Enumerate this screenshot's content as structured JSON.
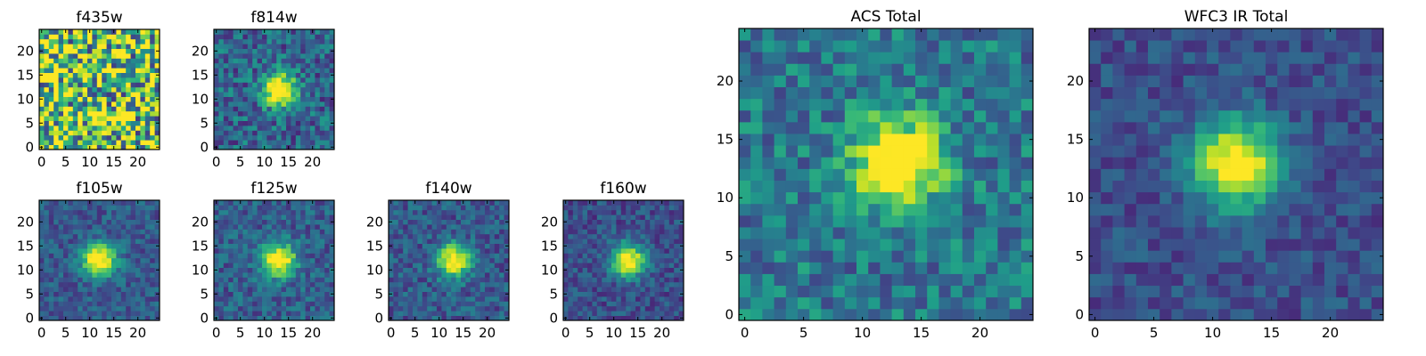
{
  "figure": {
    "colormap": "viridis"
  },
  "chart_data": [
    {
      "type": "heatmap",
      "title": "f435w",
      "size": 25,
      "xticks": [
        0,
        5,
        10,
        15,
        20
      ],
      "yticks": [
        0,
        5,
        10,
        15,
        20
      ],
      "xlim": [
        0,
        24
      ],
      "ylim": [
        0,
        24
      ],
      "source_center": [
        12,
        12
      ],
      "source_present": false,
      "noise_level": 0.55,
      "baseline": 0.72
    },
    {
      "type": "heatmap",
      "title": "f814w",
      "size": 25,
      "xticks": [
        0,
        5,
        10,
        15,
        20
      ],
      "yticks": [
        0,
        5,
        10,
        15,
        20
      ],
      "xlim": [
        0,
        24
      ],
      "ylim": [
        0,
        24
      ],
      "source_center": [
        13,
        12
      ],
      "source_present": true,
      "noise_level": 0.22,
      "baseline": 0.32
    },
    {
      "type": "heatmap",
      "title": "f105w",
      "size": 25,
      "xticks": [
        0,
        5,
        10,
        15,
        20
      ],
      "yticks": [
        0,
        5,
        10,
        15,
        20
      ],
      "xlim": [
        0,
        24
      ],
      "ylim": [
        0,
        24
      ],
      "source_center": [
        12,
        12
      ],
      "source_present": true,
      "noise_level": 0.14,
      "baseline": 0.28
    },
    {
      "type": "heatmap",
      "title": "f125w",
      "size": 25,
      "xticks": [
        0,
        5,
        10,
        15,
        20
      ],
      "yticks": [
        0,
        5,
        10,
        15,
        20
      ],
      "xlim": [
        0,
        24
      ],
      "ylim": [
        0,
        24
      ],
      "source_center": [
        13,
        12
      ],
      "source_present": true,
      "noise_level": 0.16,
      "baseline": 0.3
    },
    {
      "type": "heatmap",
      "title": "f140w",
      "size": 25,
      "xticks": [
        0,
        5,
        10,
        15,
        20
      ],
      "yticks": [
        0,
        5,
        10,
        15,
        20
      ],
      "xlim": [
        0,
        24
      ],
      "ylim": [
        0,
        24
      ],
      "source_center": [
        13,
        12
      ],
      "source_present": true,
      "noise_level": 0.16,
      "baseline": 0.28
    },
    {
      "type": "heatmap",
      "title": "f160w",
      "size": 25,
      "xticks": [
        0,
        5,
        10,
        15,
        20
      ],
      "yticks": [
        0,
        5,
        10,
        15,
        20
      ],
      "xlim": [
        0,
        24
      ],
      "ylim": [
        0,
        24
      ],
      "source_center": [
        13,
        12
      ],
      "source_present": true,
      "noise_level": 0.14,
      "baseline": 0.24
    },
    {
      "type": "heatmap",
      "title": "ACS Total",
      "size": 25,
      "xticks": [
        0,
        5,
        10,
        15,
        20
      ],
      "yticks": [
        0,
        5,
        10,
        15,
        20
      ],
      "xlim": [
        0,
        24
      ],
      "ylim": [
        0,
        24
      ],
      "source_center": [
        13,
        13
      ],
      "source_present": true,
      "noise_level": 0.2,
      "baseline": 0.4
    },
    {
      "type": "heatmap",
      "title": "WFC3 IR Total",
      "size": 25,
      "xticks": [
        0,
        5,
        10,
        15,
        20
      ],
      "yticks": [
        0,
        5,
        10,
        15,
        20
      ],
      "xlim": [
        0,
        24
      ],
      "ylim": [
        0,
        24
      ],
      "source_center": [
        12,
        13
      ],
      "source_present": true,
      "noise_level": 0.12,
      "baseline": 0.24
    }
  ]
}
